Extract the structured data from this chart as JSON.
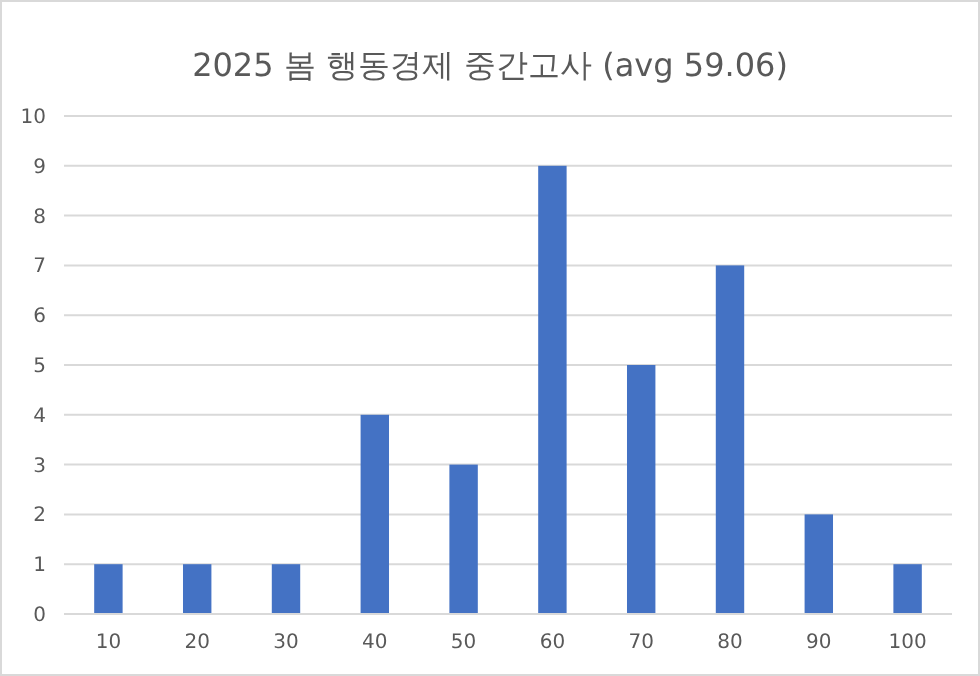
{
  "chart_data": {
    "type": "bar",
    "title": "2025 봄 행동경제 중간고사 (avg 59.06)",
    "categories": [
      "10",
      "20",
      "30",
      "40",
      "50",
      "60",
      "70",
      "80",
      "90",
      "100"
    ],
    "values": [
      1,
      1,
      1,
      4,
      3,
      9,
      5,
      7,
      2,
      1
    ],
    "color": "#4472c4",
    "ylim": [
      0,
      10
    ],
    "yticks": [
      0,
      1,
      2,
      3,
      4,
      5,
      6,
      7,
      8,
      9,
      10
    ],
    "grid": "y"
  }
}
